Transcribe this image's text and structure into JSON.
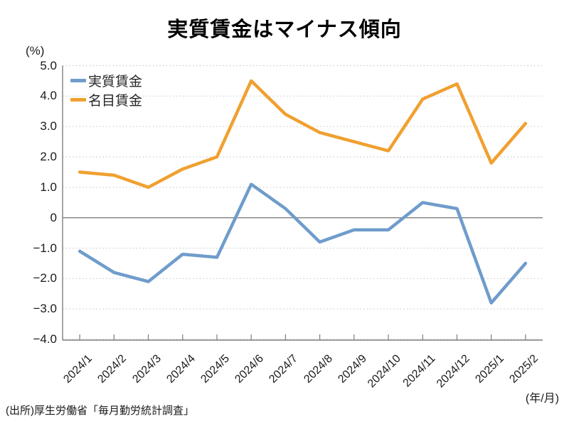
{
  "title": "実質賃金はマイナス傾向",
  "source": "(出所)厚生労働省「毎月勤労統計調査」",
  "chart_data": {
    "type": "line",
    "title": "実質賃金はマイナス傾向",
    "y_axis_unit": "(%)",
    "x_axis_unit": "(年/月)",
    "categories": [
      "2024/1",
      "2024/2",
      "2024/3",
      "2024/4",
      "2024/5",
      "2024/6",
      "2024/7",
      "2024/8",
      "2024/9",
      "2024/10",
      "2024/11",
      "2024/12",
      "2025/1",
      "2025/2"
    ],
    "series": [
      {
        "name": "実質賃金",
        "color": "#6F9CCB",
        "values": [
          -1.1,
          -1.8,
          -2.1,
          -1.2,
          -1.3,
          1.1,
          0.3,
          -0.8,
          -0.4,
          -0.4,
          0.5,
          0.3,
          -2.8,
          -1.5
        ]
      },
      {
        "name": "名目賃金",
        "color": "#F0A030",
        "values": [
          1.5,
          1.4,
          1.0,
          1.6,
          2.0,
          4.5,
          3.4,
          2.8,
          2.5,
          2.2,
          3.9,
          4.4,
          1.8,
          3.1
        ]
      }
    ],
    "ylim": [
      -4.0,
      5.0
    ],
    "ytick_step": 1.0,
    "ytick_labels": [
      "5.0",
      "4.0",
      "3.0",
      "2.0",
      "1.0",
      "0",
      "−1.0",
      "−2.0",
      "−3.0",
      "−4.0"
    ],
    "grid": "dotted-horizontal",
    "zero_line": true,
    "legend_position": "top-left-inside",
    "colors": {
      "grid": "#c6cad1",
      "axis": "#7f7f7f",
      "zero_line": "#7f7f7f",
      "text": "#1a1a1a"
    }
  }
}
